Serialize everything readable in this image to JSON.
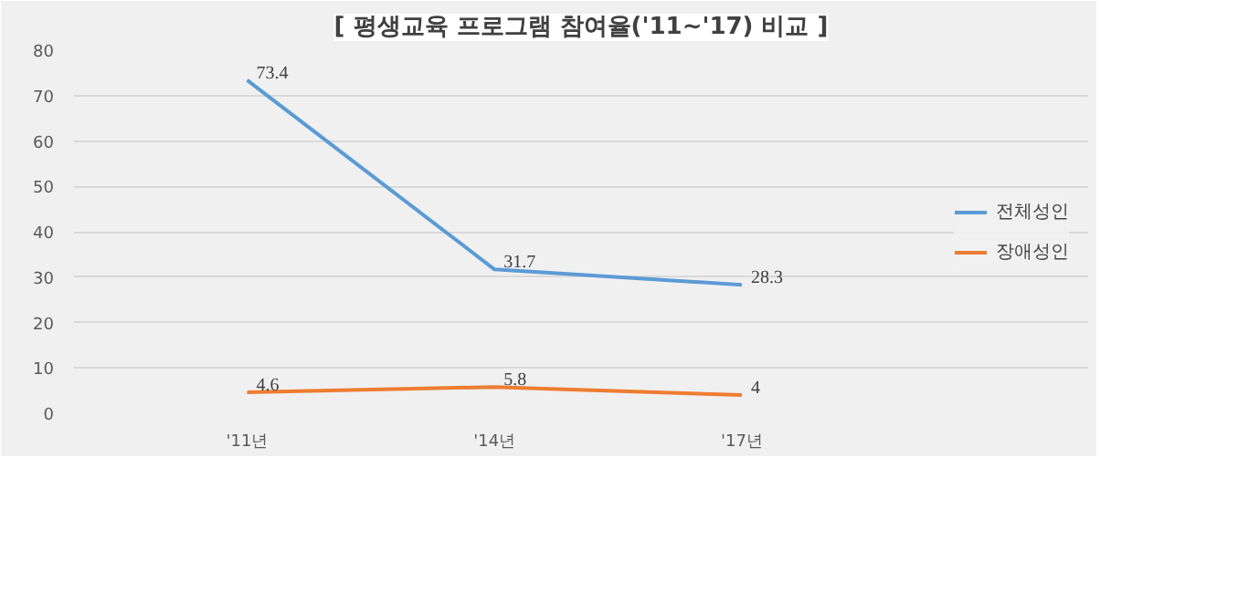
{
  "chart_data": {
    "type": "line",
    "title": "[ 평생교육 프로그램 참여율('11~'17) 비교 ]",
    "categories": [
      "'11년",
      "'14년",
      "'17년"
    ],
    "series": [
      {
        "name": "전체성인",
        "color": "#5b9bd5",
        "values": [
          73.4,
          31.7,
          28.3
        ]
      },
      {
        "name": "장애성인",
        "color": "#ed7d31",
        "values": [
          4.6,
          5.8,
          4
        ]
      }
    ],
    "ylim": [
      0,
      80
    ],
    "yticks": [
      0,
      10,
      20,
      30,
      40,
      50,
      60,
      70,
      80
    ],
    "grid": "y",
    "legend": "right",
    "data_labels": true
  }
}
